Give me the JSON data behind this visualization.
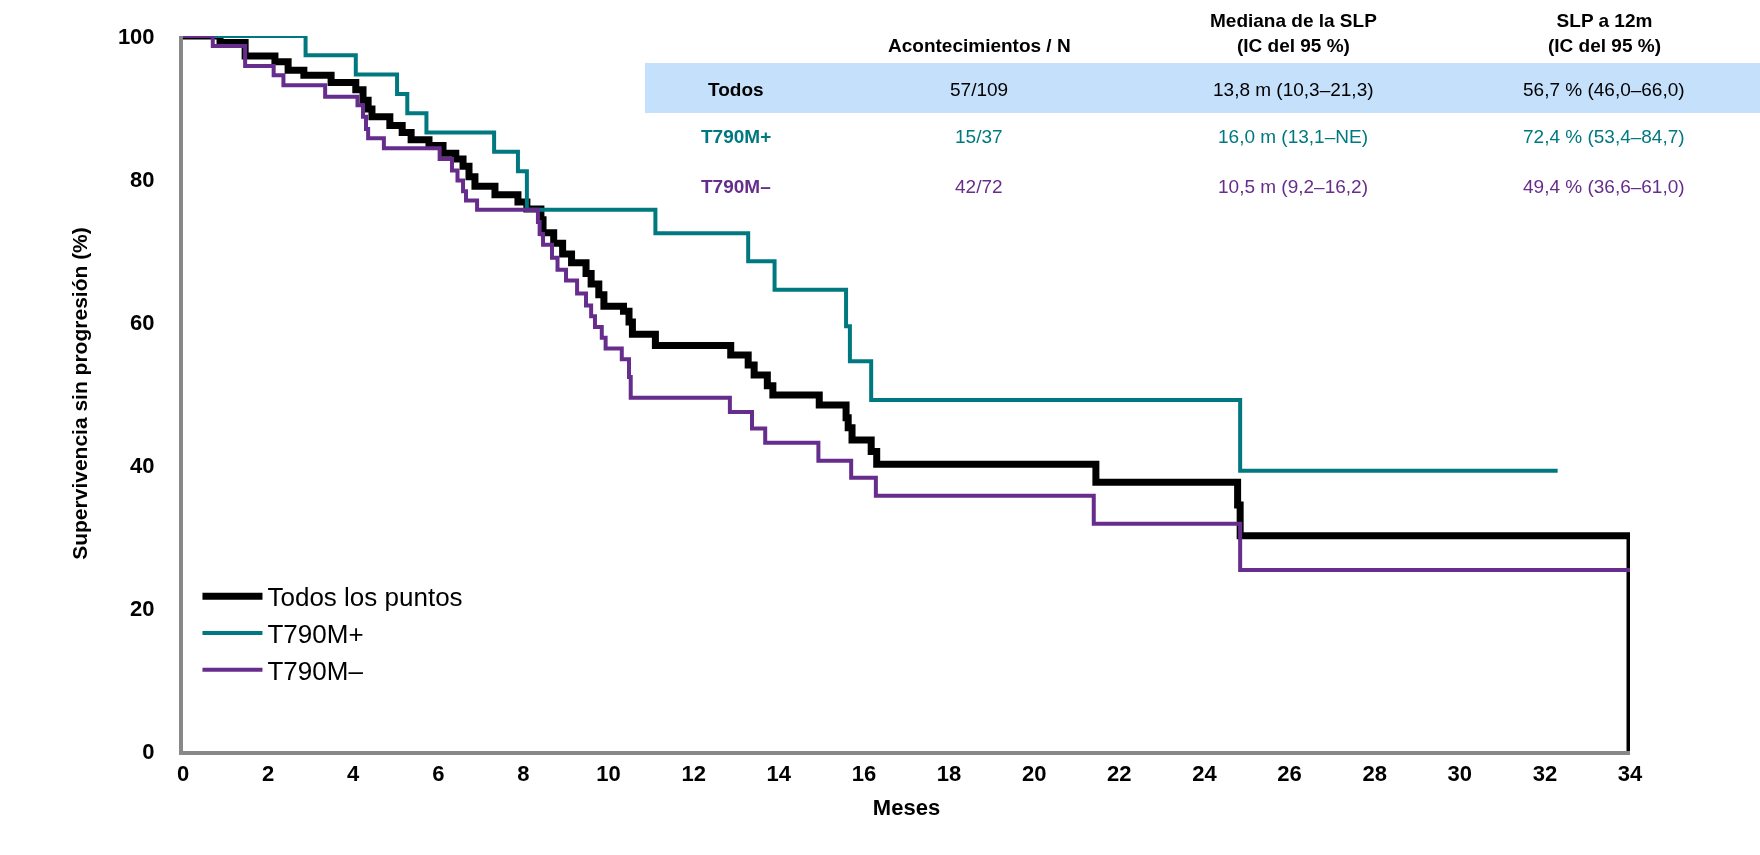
{
  "chart_data": {
    "type": "step",
    "xlabel": "Meses",
    "ylabel": "Supervivencia sin progresión (%)",
    "xlim": [
      0,
      34
    ],
    "xticks": [
      0,
      2,
      4,
      6,
      8,
      10,
      12,
      14,
      16,
      18,
      20,
      22,
      24,
      26,
      28,
      30,
      32,
      34
    ],
    "ylim": [
      0,
      100
    ],
    "yticks": [
      0,
      20,
      40,
      60,
      80,
      100
    ],
    "grid": false,
    "legend": "bottom left",
    "marker": "none",
    "line_style": "solid",
    "series": [
      {
        "name": "Todos los puntos",
        "color": "#000000",
        "x": [
          0,
          0.87,
          1.46,
          2.16,
          2.47,
          2.84,
          3.48,
          4.06,
          4.23,
          4.35,
          4.44,
          4.86,
          5.15,
          5.36,
          5.78,
          6.11,
          6.41,
          6.58,
          6.72,
          6.86,
          7.33,
          7.87,
          8.08,
          8.41,
          8.46,
          8.71,
          8.92,
          9.13,
          9.47,
          9.59,
          9.77,
          9.89,
          10.35,
          10.48,
          10.56,
          11.1,
          12.87,
          13.28,
          13.42,
          13.73,
          13.86,
          14.95,
          15.58,
          15.63,
          15.72,
          16.17,
          16.3,
          21.45,
          24.78,
          24.84,
          34,
          34
        ],
        "values": [
          100,
          99.1,
          97.2,
          96.4,
          95.2,
          94.5,
          93.5,
          92.5,
          91.0,
          89.8,
          88.7,
          87.5,
          86.5,
          85.5,
          84.7,
          83.6,
          82.8,
          81.8,
          80.3,
          79.0,
          77.8,
          76.8,
          75.8,
          74.3,
          72.5,
          71.0,
          69.5,
          68.3,
          66.8,
          65.3,
          63.8,
          62.2,
          61.5,
          60.0,
          58.3,
          56.7,
          55.4,
          54.0,
          52.6,
          51.1,
          49.8,
          48.4,
          46.6,
          45.2,
          43.5,
          41.9,
          40.1,
          37.6,
          34.4,
          30.1,
          30.1,
          0
        ]
      },
      {
        "name": "T790M+",
        "color": "#00787f",
        "x": [
          0,
          2.88,
          4.06,
          5.03,
          5.27,
          5.72,
          7.31,
          7.87,
          8.08,
          11.1,
          13.28,
          13.9,
          15.58,
          15.67,
          16.17,
          24.84,
          32.3
        ],
        "values": [
          100,
          97.3,
          94.6,
          91.9,
          89.2,
          86.5,
          83.8,
          81.1,
          75.7,
          72.4,
          68.5,
          64.5,
          59.4,
          54.5,
          49.1,
          39.2,
          39.2
        ]
      },
      {
        "name": "T790M–",
        "color": "#662d8c",
        "x": [
          0,
          0.7,
          1.46,
          2.13,
          2.36,
          3.34,
          4.1,
          4.23,
          4.3,
          4.35,
          4.72,
          6.03,
          6.32,
          6.45,
          6.58,
          6.65,
          6.91,
          8.34,
          8.38,
          8.46,
          8.67,
          8.8,
          9.0,
          9.26,
          9.47,
          9.59,
          9.68,
          9.84,
          9.93,
          10.31,
          10.48,
          10.52,
          12.85,
          13.37,
          13.68,
          14.93,
          15.7,
          16.28,
          21.4,
          24.84,
          34
        ],
        "values": [
          100,
          98.6,
          95.8,
          94.5,
          93.1,
          91.5,
          90.3,
          88.7,
          87.0,
          85.7,
          84.3,
          82.8,
          81.2,
          79.8,
          78.3,
          77.0,
          75.7,
          74.0,
          72.3,
          70.8,
          69.0,
          67.3,
          65.8,
          64.0,
          62.3,
          60.8,
          59.3,
          57.8,
          56.3,
          54.8,
          52.3,
          49.4,
          47.4,
          45.1,
          43.1,
          40.6,
          38.2,
          35.7,
          31.8,
          25.3,
          25.3
        ]
      }
    ],
    "annotations": [
      "Acontecimientos / N",
      "Mediana de la SLP\n(IC del 95 %)",
      "SLP a 12m\n(IC del 95 %)",
      "Todos",
      "57/109",
      "13,8 m (10,3–21,3)",
      "56,7 % (46,0–66,0)",
      "T790M+",
      "15/37",
      "16,0 m (13,1–NE)",
      "72,4 % (53,4–84,7)",
      "T790M–",
      "42/72",
      "10,5 m (9,2–16,2)",
      "49,4 % (36,6–61,0)"
    ]
  }
}
